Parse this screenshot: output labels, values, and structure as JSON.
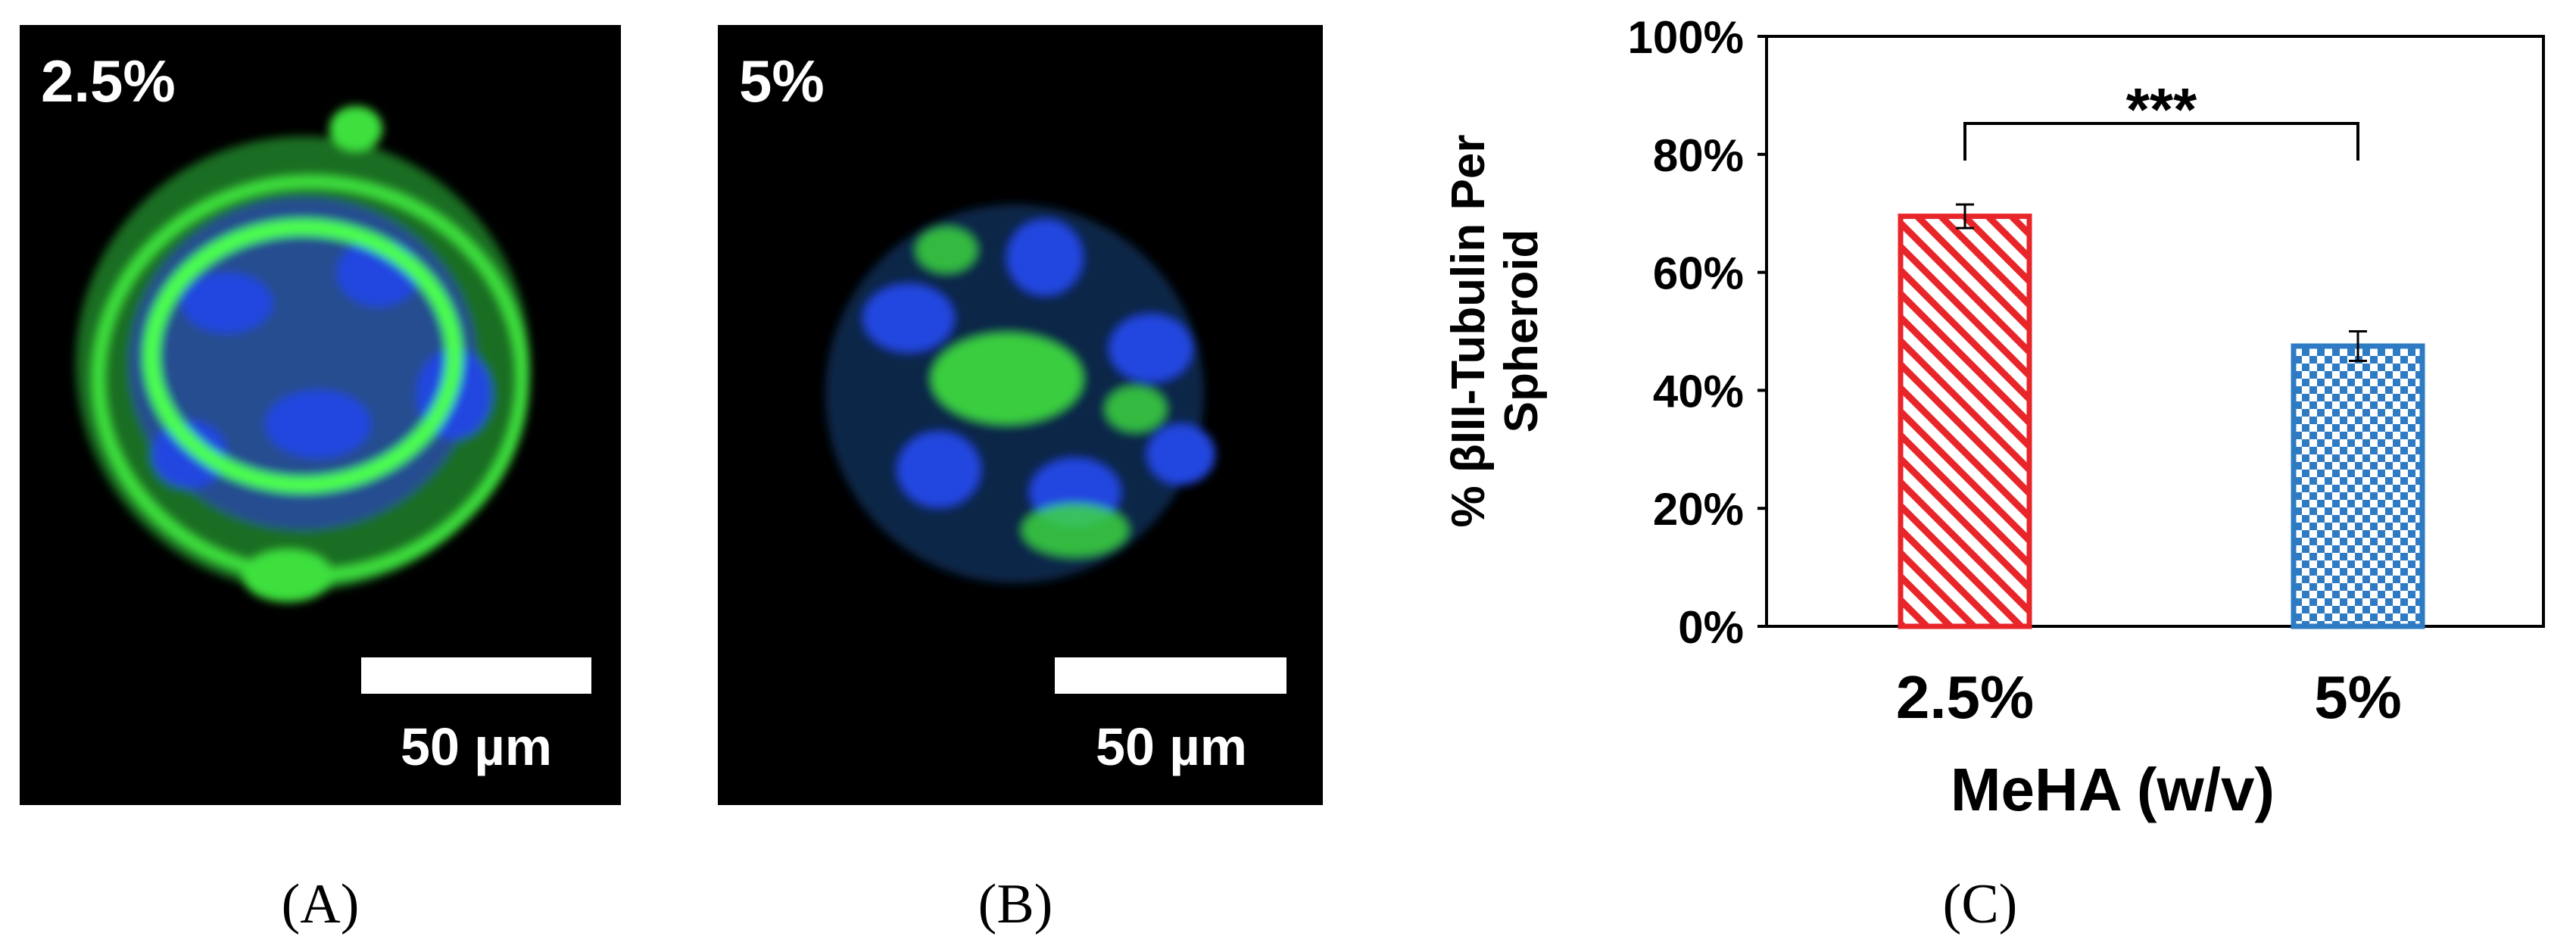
{
  "panels": [
    {
      "label": "(A)",
      "overlay": "2.5%",
      "scale_bar": "50 µm"
    },
    {
      "label": "(B)",
      "overlay": "5%",
      "scale_bar": "50 µm"
    }
  ],
  "chart_data": {
    "type": "bar",
    "panel_label": "(C)",
    "y_label": [
      "% βIII-Tubulin Per",
      "Spheroid"
    ],
    "x_label": "MeHA (w/v)",
    "categories": [
      "2.5%",
      "5%"
    ],
    "values": [
      69.5,
      47.5
    ],
    "errors": [
      2,
      2.5
    ],
    "colors": [
      "#e8262a",
      "#2e7bc4"
    ],
    "patterns": [
      "diagonal",
      "checker"
    ],
    "significance": "***",
    "ylim": [
      0,
      100
    ],
    "yticks": [
      {
        "value": 0,
        "label": "0%"
      },
      {
        "value": 20,
        "label": "20%"
      },
      {
        "value": 40,
        "label": "40%"
      },
      {
        "value": 60,
        "label": "60%"
      },
      {
        "value": 80,
        "label": "80%"
      },
      {
        "value": 100,
        "label": "100%"
      }
    ]
  }
}
